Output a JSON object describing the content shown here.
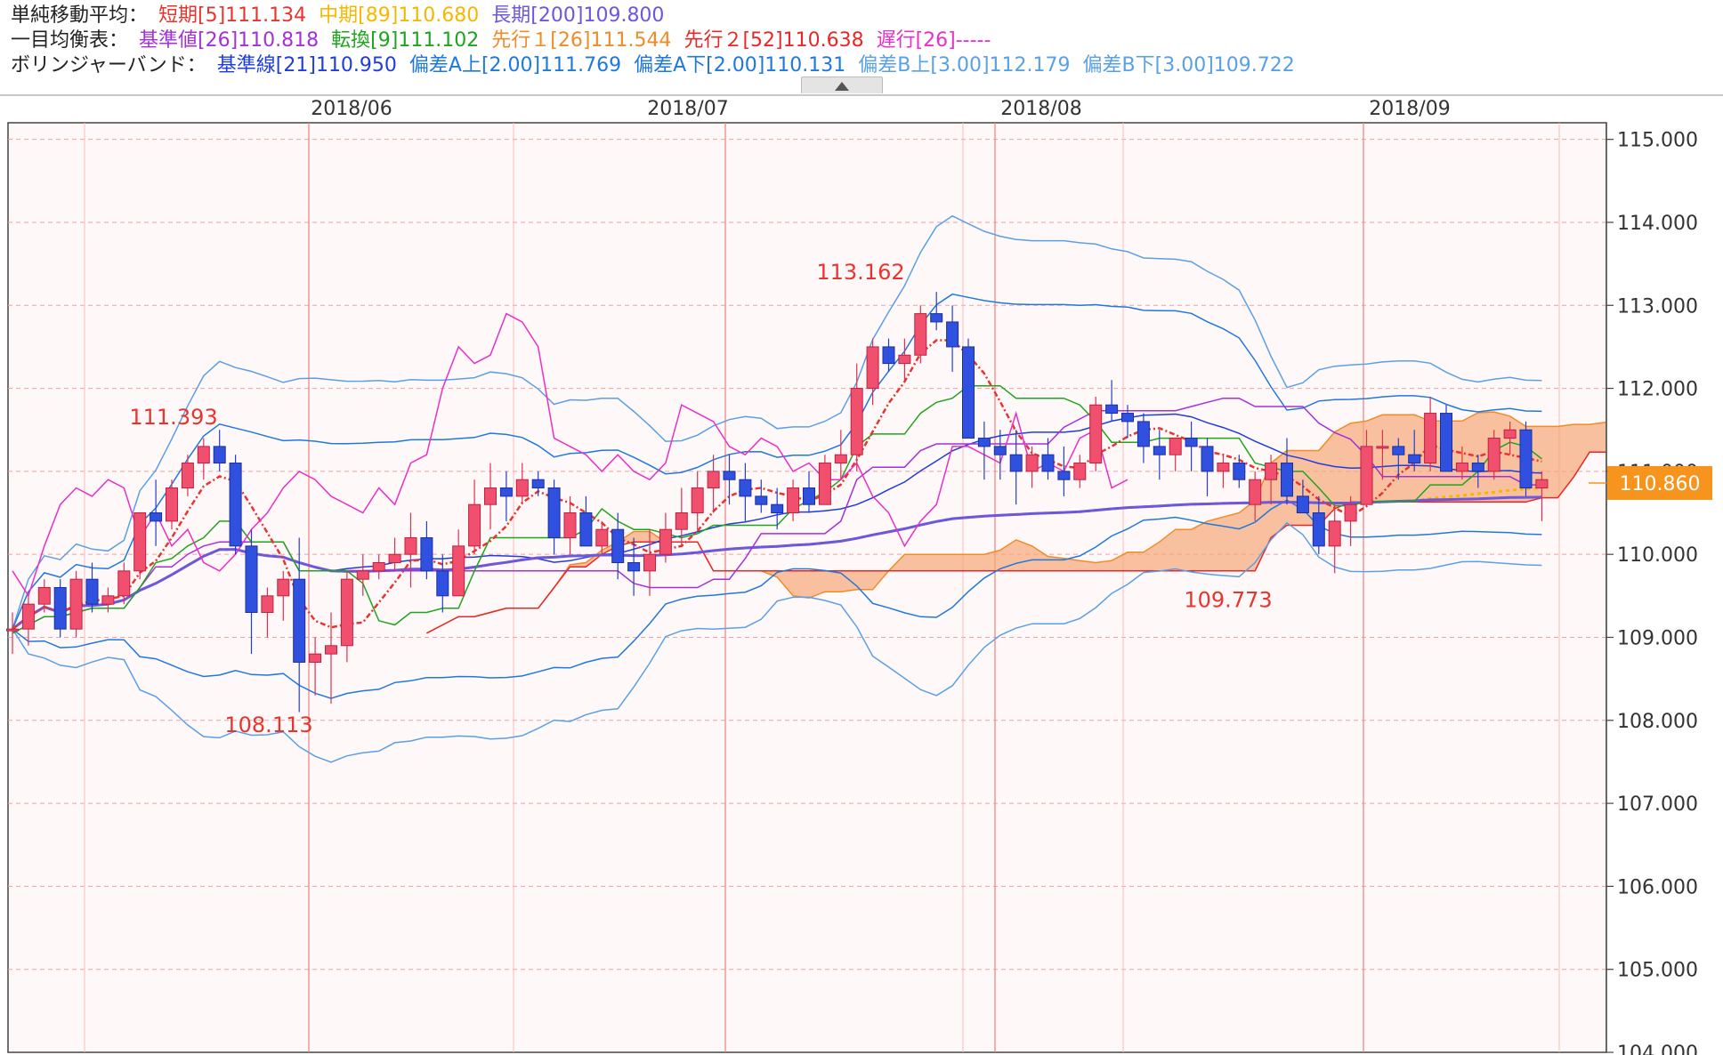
{
  "legend": {
    "sma": {
      "title": "単純移動平均：",
      "short": "短期[5]111.134",
      "mid": "中期[89]110.680",
      "long": "長期[200]109.800"
    },
    "ichimoku": {
      "title": "一目均衡表：",
      "kijun": "基準値[26]110.818",
      "tenkan": "転換[9]111.102",
      "senkou1": "先行１[26]111.544",
      "senkou2": "先行２[52]110.638",
      "chikou": "遅行[26]-----"
    },
    "bollinger": {
      "title": "ボリンジャーバンド：",
      "base": "基準線[21]110.950",
      "a_up": "偏差A上[2.00]111.769",
      "a_down": "偏差A下[2.00]110.131",
      "b_up": "偏差B上[3.00]112.179",
      "b_down": "偏差B下[3.00]109.722"
    }
  },
  "colors": {
    "sma_short": "#e8342e",
    "sma_mid": "#f5b800",
    "sma_long": "#6b57e0",
    "kijun": "#a530d8",
    "tenkan": "#1ea51e",
    "senkou1": "#f08c28",
    "senkou2": "#e82828",
    "chikou": "#e830c8",
    "bb_base": "#1e3ce0",
    "bb_a": "#1e78e0",
    "bb_b": "#5aa0e6",
    "up_candle": "#f0506e",
    "down_candle": "#3050e0",
    "price_tag": "#f7941d"
  },
  "chart_data": {
    "type": "candlestick",
    "x_labels": [
      "2018/06",
      "2018/07",
      "2018/08",
      "2018/09"
    ],
    "y_ticks": [
      "115.000",
      "114.000",
      "113.000",
      "112.000",
      "111.000",
      "110.000",
      "109.000",
      "108.000",
      "107.000",
      "106.000",
      "105.000",
      "104.000"
    ],
    "ylim": [
      104,
      115.2
    ],
    "current_price": "110.860",
    "annotations": [
      {
        "text": "111.393",
        "value": 111.393
      },
      {
        "text": "108.113",
        "value": 108.113
      },
      {
        "text": "113.162",
        "value": 113.162
      },
      {
        "text": "109.773",
        "value": 109.773
      }
    ],
    "candles": [
      [
        109.1,
        109.3,
        108.8,
        109.1
      ],
      [
        109.1,
        109.5,
        108.9,
        109.4
      ],
      [
        109.4,
        109.7,
        109.3,
        109.6
      ],
      [
        109.6,
        109.7,
        109.0,
        109.1
      ],
      [
        109.1,
        109.8,
        109.0,
        109.7
      ],
      [
        109.7,
        109.9,
        109.3,
        109.4
      ],
      [
        109.4,
        109.6,
        109.3,
        109.5
      ],
      [
        109.5,
        109.9,
        109.4,
        109.8
      ],
      [
        109.8,
        110.4,
        109.7,
        110.5
      ],
      [
        110.5,
        110.9,
        110.1,
        110.4
      ],
      [
        110.4,
        110.9,
        110.3,
        110.8
      ],
      [
        110.8,
        111.2,
        110.7,
        111.1
      ],
      [
        111.1,
        111.4,
        110.9,
        111.3
      ],
      [
        111.3,
        111.5,
        111.0,
        111.1
      ],
      [
        111.1,
        111.2,
        110.0,
        110.1
      ],
      [
        110.1,
        110.3,
        108.8,
        109.3
      ],
      [
        109.3,
        109.6,
        109.0,
        109.5
      ],
      [
        109.5,
        109.8,
        109.2,
        109.7
      ],
      [
        109.7,
        110.2,
        108.1,
        108.7
      ],
      [
        108.7,
        109.0,
        108.3,
        108.8
      ],
      [
        108.8,
        109.3,
        108.2,
        108.9
      ],
      [
        108.9,
        109.8,
        108.7,
        109.7
      ],
      [
        109.7,
        110.0,
        109.5,
        109.8
      ],
      [
        109.8,
        110.0,
        109.7,
        109.9
      ],
      [
        109.9,
        110.2,
        109.8,
        110.0
      ],
      [
        110.0,
        110.5,
        109.6,
        110.2
      ],
      [
        110.2,
        110.4,
        109.7,
        109.8
      ],
      [
        109.8,
        110.0,
        109.3,
        109.5
      ],
      [
        109.5,
        110.3,
        109.5,
        110.1
      ],
      [
        110.1,
        110.9,
        110.0,
        110.6
      ],
      [
        110.6,
        111.1,
        110.3,
        110.8
      ],
      [
        110.8,
        111.0,
        110.4,
        110.7
      ],
      [
        110.7,
        111.1,
        110.6,
        110.9
      ],
      [
        110.9,
        111.0,
        110.7,
        110.8
      ],
      [
        110.8,
        110.9,
        110.0,
        110.2
      ],
      [
        110.2,
        110.7,
        110.0,
        110.5
      ],
      [
        110.5,
        110.7,
        110.1,
        110.1
      ],
      [
        110.1,
        110.4,
        110.0,
        110.3
      ],
      [
        110.3,
        110.5,
        109.7,
        109.9
      ],
      [
        109.9,
        110.2,
        109.5,
        109.8
      ],
      [
        109.8,
        110.3,
        109.5,
        110.0
      ],
      [
        110.0,
        110.5,
        109.9,
        110.3
      ],
      [
        110.3,
        110.8,
        110.1,
        110.5
      ],
      [
        110.5,
        111.0,
        110.3,
        110.8
      ],
      [
        110.8,
        111.2,
        110.5,
        111.0
      ],
      [
        111.0,
        111.2,
        110.6,
        110.9
      ],
      [
        110.9,
        111.1,
        110.4,
        110.7
      ],
      [
        110.7,
        110.9,
        110.5,
        110.6
      ],
      [
        110.6,
        110.8,
        110.3,
        110.5
      ],
      [
        110.5,
        110.9,
        110.4,
        110.8
      ],
      [
        110.8,
        111.0,
        110.5,
        110.6
      ],
      [
        110.6,
        111.2,
        110.6,
        111.1
      ],
      [
        111.1,
        111.5,
        110.9,
        111.2
      ],
      [
        111.2,
        112.3,
        111.0,
        112.0
      ],
      [
        112.0,
        112.6,
        111.8,
        112.5
      ],
      [
        112.5,
        112.6,
        112.2,
        112.3
      ],
      [
        112.3,
        112.6,
        112.1,
        112.4
      ],
      [
        112.4,
        113.0,
        112.3,
        112.9
      ],
      [
        112.9,
        113.162,
        112.7,
        112.8
      ],
      [
        112.8,
        113.0,
        112.2,
        112.5
      ],
      [
        112.5,
        112.6,
        111.4,
        111.4
      ],
      [
        111.4,
        111.6,
        110.9,
        111.3
      ],
      [
        111.3,
        111.5,
        110.9,
        111.2
      ],
      [
        111.2,
        111.5,
        110.6,
        111.0
      ],
      [
        111.0,
        111.3,
        110.8,
        111.2
      ],
      [
        111.2,
        111.4,
        110.9,
        111.0
      ],
      [
        111.0,
        111.3,
        110.7,
        110.9
      ],
      [
        110.9,
        111.2,
        110.8,
        111.1
      ],
      [
        111.1,
        111.9,
        111.0,
        111.8
      ],
      [
        111.8,
        112.1,
        111.6,
        111.7
      ],
      [
        111.7,
        111.8,
        111.4,
        111.6
      ],
      [
        111.6,
        111.7,
        111.1,
        111.3
      ],
      [
        111.3,
        111.5,
        110.9,
        111.2
      ],
      [
        111.2,
        111.4,
        111.0,
        111.4
      ],
      [
        111.4,
        111.6,
        111.0,
        111.3
      ],
      [
        111.3,
        111.4,
        110.7,
        111.0
      ],
      [
        111.0,
        111.2,
        110.8,
        111.1
      ],
      [
        111.1,
        111.2,
        110.8,
        110.9
      ],
      [
        110.6,
        111.0,
        110.4,
        110.9
      ],
      [
        110.9,
        111.2,
        110.6,
        111.1
      ],
      [
        111.1,
        111.4,
        110.6,
        110.7
      ],
      [
        110.7,
        110.9,
        110.5,
        110.5
      ],
      [
        110.5,
        110.7,
        110.0,
        110.1
      ],
      [
        110.1,
        110.6,
        109.773,
        110.4
      ],
      [
        110.4,
        110.7,
        110.1,
        110.6
      ],
      [
        110.6,
        111.5,
        110.6,
        111.3
      ],
      [
        111.3,
        111.5,
        110.9,
        111.3
      ],
      [
        111.3,
        111.4,
        110.9,
        111.2
      ],
      [
        111.2,
        111.5,
        111.0,
        111.1
      ],
      [
        111.1,
        111.9,
        111.0,
        111.7
      ],
      [
        111.7,
        111.8,
        111.0,
        111.0
      ],
      [
        111.0,
        111.3,
        110.9,
        111.1
      ],
      [
        111.1,
        111.2,
        110.8,
        111.0
      ],
      [
        111.0,
        111.5,
        110.9,
        111.4
      ],
      [
        111.4,
        111.6,
        111.2,
        111.5
      ],
      [
        111.5,
        111.6,
        110.7,
        110.8
      ],
      [
        110.8,
        111.0,
        110.4,
        110.9
      ]
    ]
  }
}
